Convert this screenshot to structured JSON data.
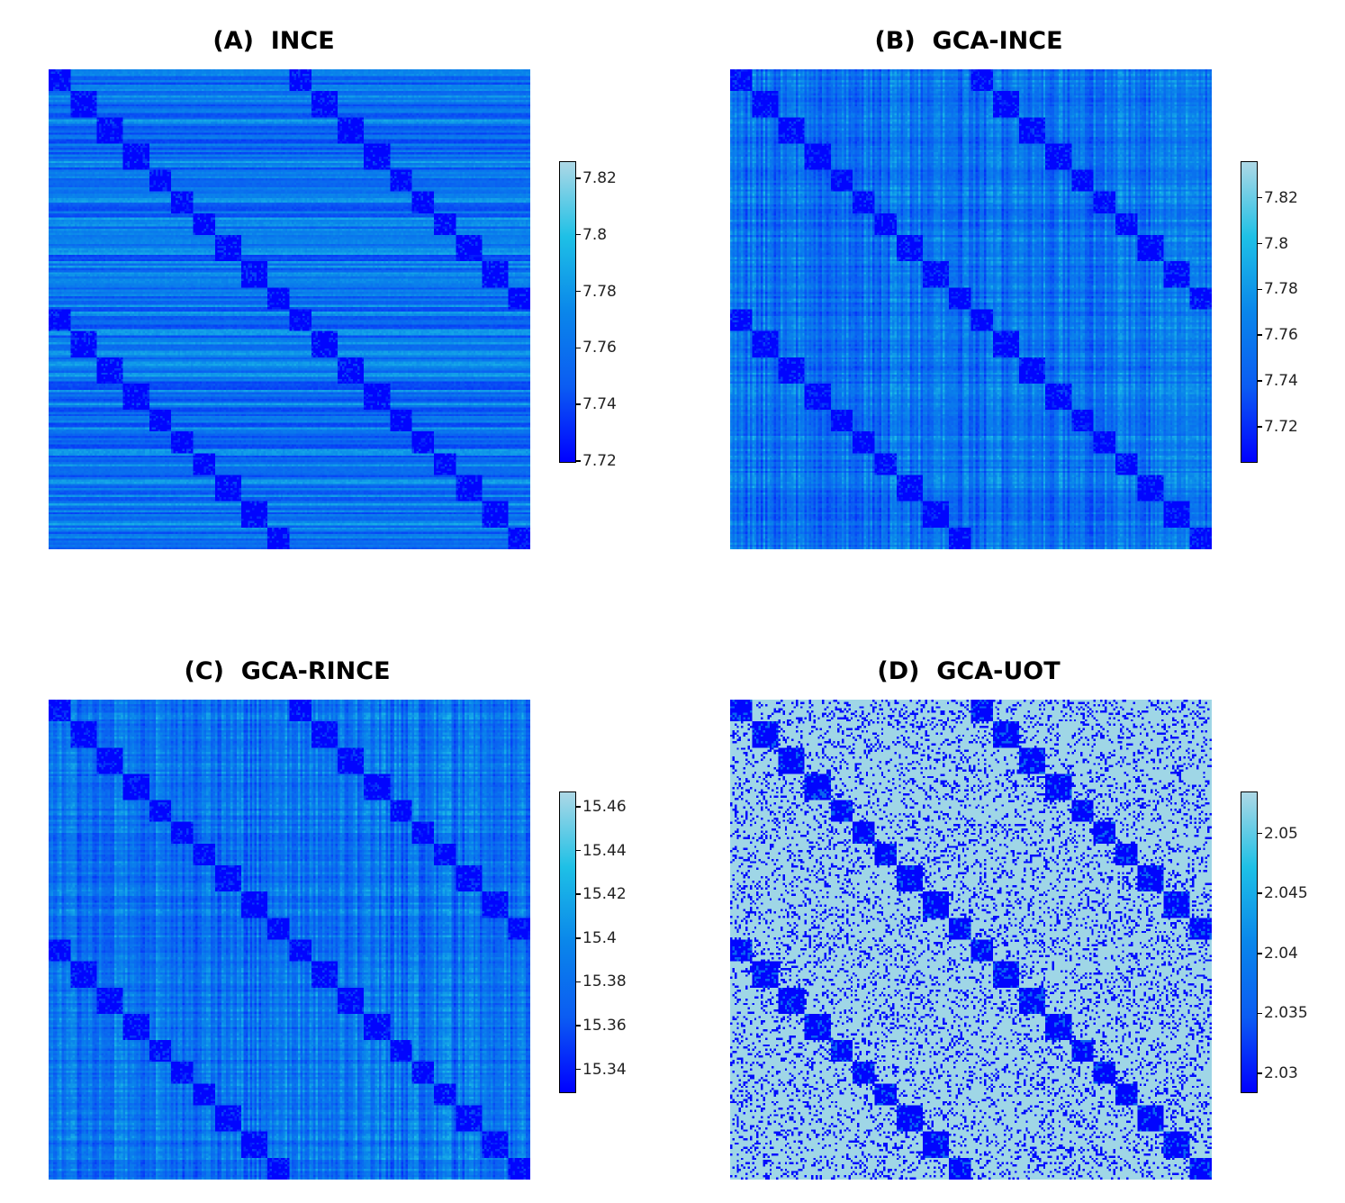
{
  "chart_data": [
    {
      "type": "heatmap",
      "title": "(A)  INCE",
      "colorbar": {
        "ticks": [
          "7.72",
          "7.74",
          "7.76",
          "7.78",
          "7.8",
          "7.82"
        ],
        "range": [
          7.72,
          7.826
        ]
      },
      "colormap": [
        "#0000ff",
        "#add8e6"
      ],
      "pattern": "rows",
      "block_diagonal_groups": 20
    },
    {
      "type": "heatmap",
      "title": "(B)  GCA-INCE",
      "colorbar": {
        "ticks": [
          "7.72",
          "7.74",
          "7.76",
          "7.78",
          "7.8",
          "7.82"
        ],
        "range": [
          7.705,
          7.836
        ]
      },
      "colormap": [
        "#0000ff",
        "#add8e6"
      ],
      "pattern": "grid",
      "block_diagonal_groups": 20
    },
    {
      "type": "heatmap",
      "title": "(C)  GCA-RINCE",
      "colorbar": {
        "ticks": [
          "15.34",
          "15.36",
          "15.38",
          "15.4",
          "15.42",
          "15.44",
          "15.46"
        ],
        "range": [
          15.33,
          15.467
        ]
      },
      "colormap": [
        "#0000ff",
        "#add8e6"
      ],
      "pattern": "grid",
      "block_diagonal_groups": 20
    },
    {
      "type": "heatmap",
      "title": "(D)  GCA-UOT",
      "colorbar": {
        "ticks": [
          "2.03",
          "2.035",
          "2.04",
          "2.045",
          "2.05"
        ],
        "range": [
          2.0285,
          2.0535
        ]
      },
      "colormap": [
        "#0000ff",
        "#add8e6"
      ],
      "pattern": "sparse",
      "block_diagonal_groups": 20
    }
  ]
}
